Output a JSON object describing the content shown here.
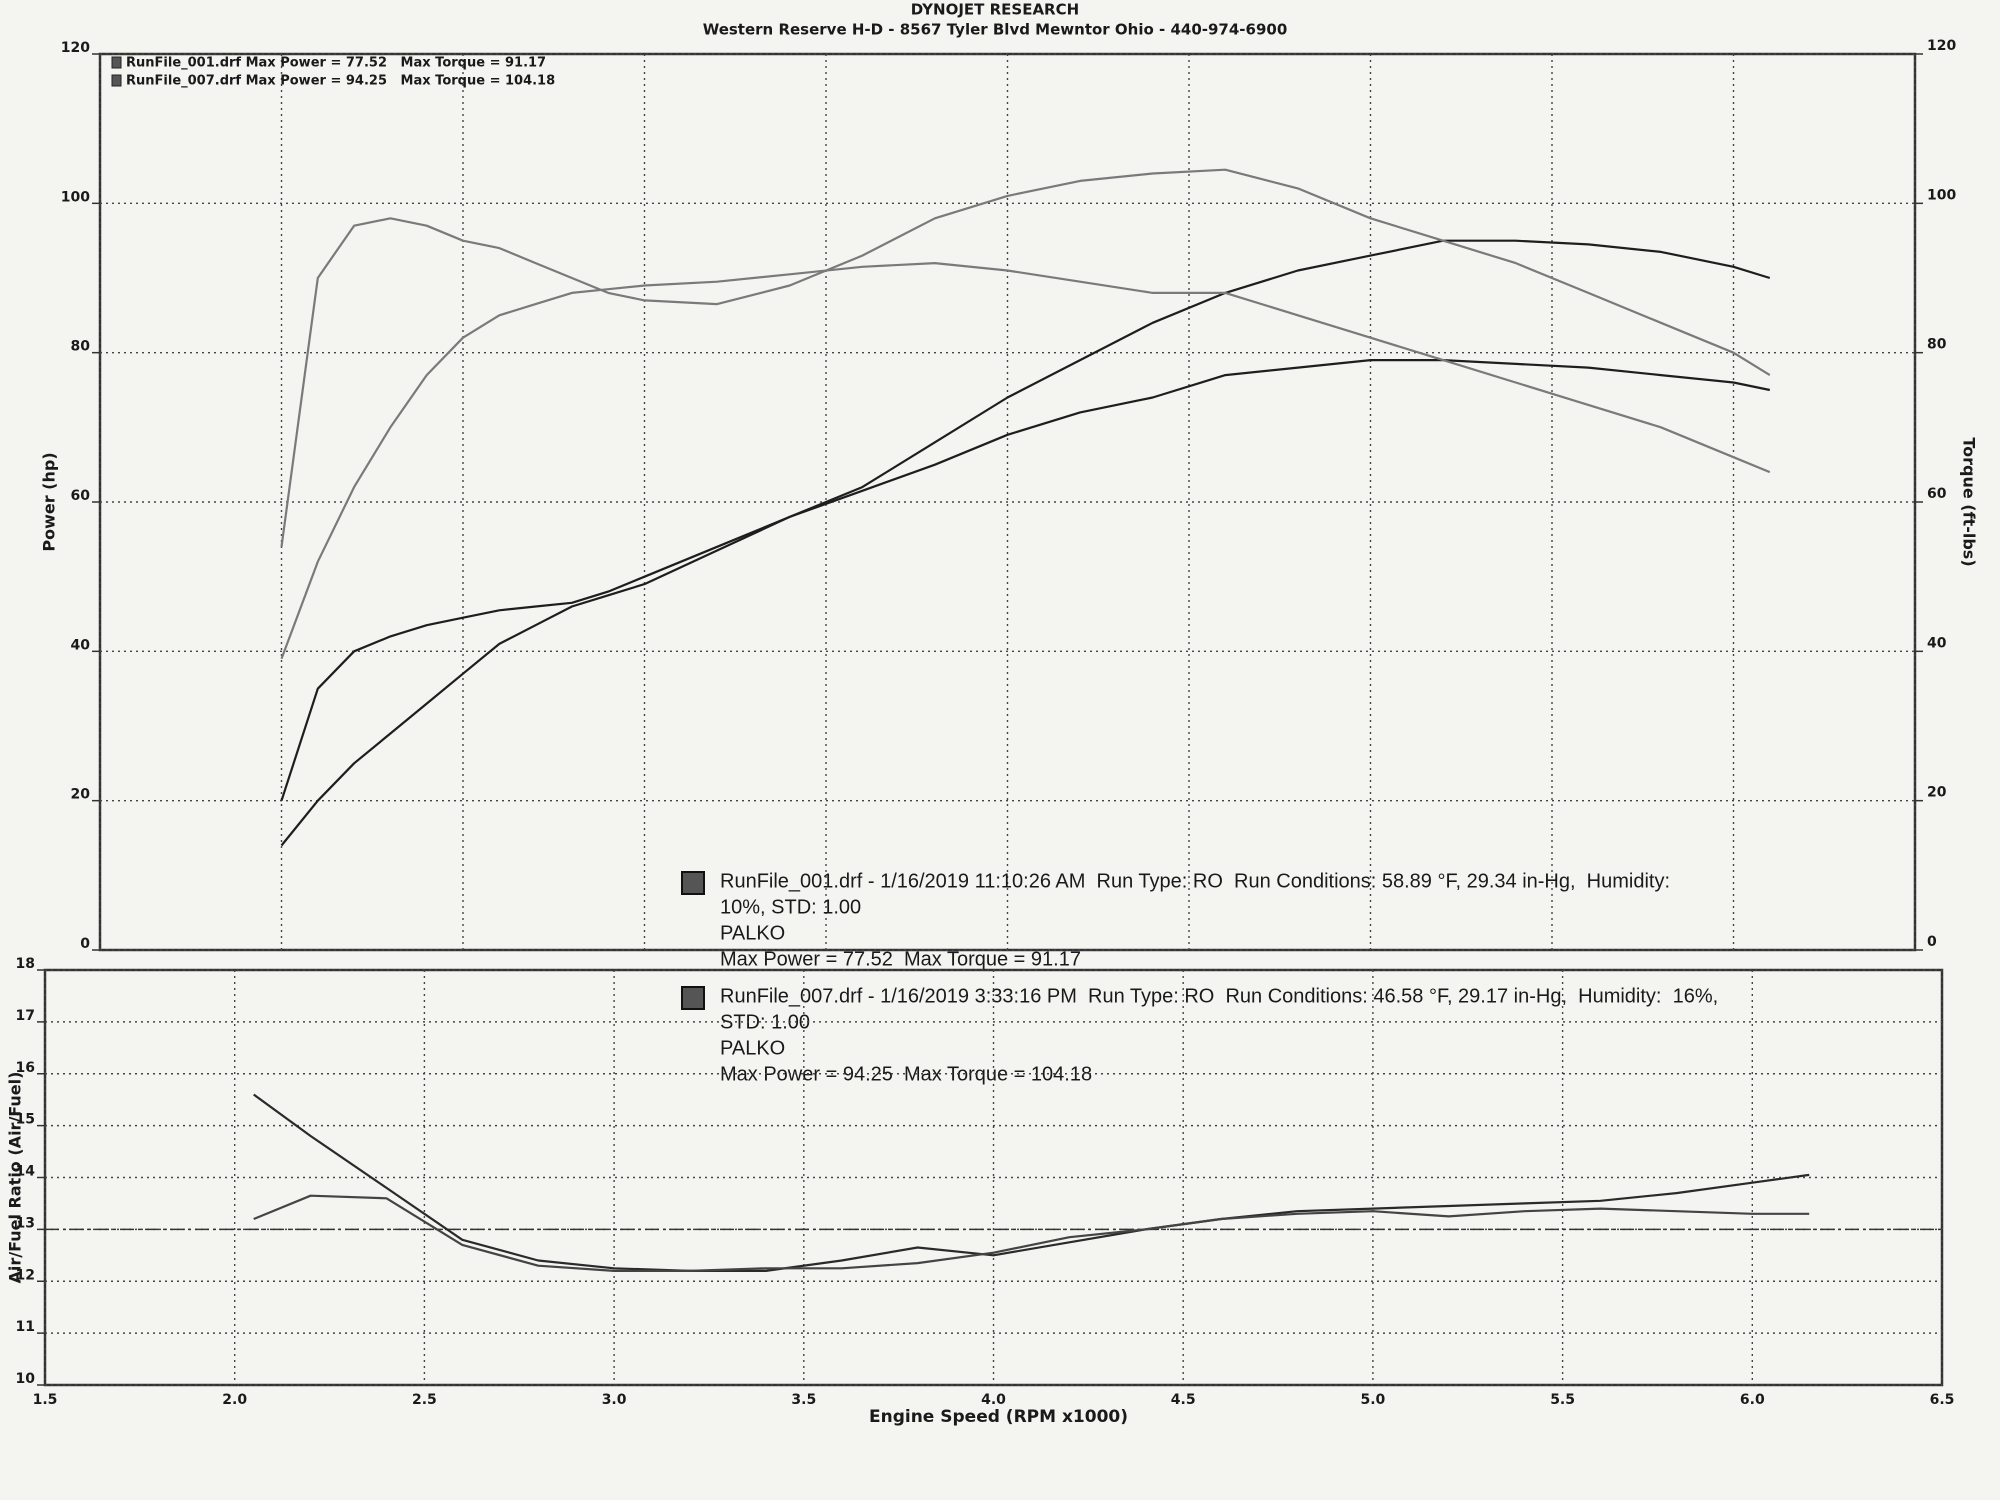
{
  "chart_data": [
    {
      "type": "line",
      "title": "DYNOJET RESEARCH",
      "subtitle": "Western Reserve H-D - 8567 Tyler Blvd Mewntor Ohio - 440-974-6900",
      "ylabel": "Power (hp)",
      "y2label": "Torque (ft-lbs)",
      "legend": [
        "RunFile_001.drf Max Power = 77.52   Max Torque = 91.17",
        "RunFile_007.drf Max Power = 94.25   Max Torque = 104.18"
      ],
      "annotations": [
        [
          "RunFile_001.drf - 1/16/2019 11:10:26 AM  Run Type: RO  Run Conditions: 58.89 °F, 29.34 in-Hg,  Humidity:",
          "10%, STD: 1.00",
          "PALKO",
          "Max Power = 77.52  Max Torque = 91.17"
        ],
        [
          "RunFile_007.drf - 1/16/2019 3:33:16 PM  Run Type: RO  Run Conditions: 46.58 °F, 29.17 in-Hg,  Humidity:  16%,",
          "STD: 1.00",
          "PALKO",
          "Max Power = 94.25  Max Torque = 104.18"
        ]
      ],
      "xlim": [
        1.5,
        6.5
      ],
      "x": [
        2.0,
        2.1,
        2.2,
        2.3,
        2.4,
        2.5,
        2.6,
        2.7,
        2.8,
        2.9,
        3.0,
        3.2,
        3.4,
        3.6,
        3.8,
        4.0,
        4.2,
        4.4,
        4.6,
        4.8,
        5.0,
        5.2,
        5.4,
        5.6,
        5.8,
        6.0,
        6.1
      ],
      "ylim": [
        0,
        120
      ],
      "yticks": [
        0,
        20,
        40,
        60,
        80,
        100,
        120
      ],
      "y2lim": [
        0,
        120
      ],
      "y2ticks": [
        0,
        20,
        40,
        60,
        80,
        100,
        120
      ],
      "grid": true,
      "series": [
        {
          "color": "#1e1e1e",
          "values": [
            20,
            35,
            40,
            42,
            43.5,
            44.5,
            45.5,
            46,
            46.5,
            48,
            50,
            54,
            58,
            61.5,
            65,
            69,
            72,
            74,
            77,
            78,
            79,
            79,
            78.5,
            78,
            77,
            76,
            75
          ]
        },
        {
          "color": "#1e1e1e",
          "values": [
            14,
            20,
            25,
            29,
            33,
            37,
            41,
            43.5,
            46,
            47.5,
            49,
            53.5,
            58,
            62,
            68,
            74,
            79,
            84,
            88,
            91,
            93,
            95,
            95,
            94.5,
            93.5,
            91.5,
            90
          ]
        },
        {
          "color": "#7a7a7a",
          "axis": "y2",
          "values": [
            39,
            52,
            62,
            70,
            77,
            82,
            85,
            86.5,
            88,
            88.5,
            89,
            89.5,
            90.5,
            91.5,
            92,
            91,
            89.5,
            88,
            88,
            85,
            82,
            79,
            76,
            73,
            70,
            66,
            64
          ]
        },
        {
          "color": "#7a7a7a",
          "axis": "y2",
          "values": [
            54,
            90,
            97,
            98,
            97,
            95,
            94,
            92,
            90,
            88,
            87,
            86.5,
            89,
            93,
            98,
            101,
            103,
            104,
            104.5,
            102,
            98,
            95,
            92,
            88,
            84,
            80,
            77
          ]
        }
      ]
    },
    {
      "type": "line",
      "ylabel": "Air/Fuel Ratio (Air/Fuel)",
      "xlabel": "Engine Speed (RPM x1000)",
      "xlim": [
        1.5,
        6.5
      ],
      "xticks": [
        1.5,
        {
          "value": 2,
          "label": "2.0"
        },
        2.5,
        {
          "value": 3,
          "label": "3.0"
        },
        3.5,
        {
          "value": 4,
          "label": "4.0"
        },
        4.5,
        {
          "value": 5,
          "label": "5.0"
        },
        5.5,
        {
          "value": 6,
          "label": "6.0"
        },
        6.5
      ],
      "ylim": [
        10,
        18
      ],
      "yticks": [
        10,
        11,
        12,
        13,
        14,
        15,
        16,
        17,
        18
      ],
      "grid": true,
      "reference_line": 13,
      "x": [
        2.05,
        2.2,
        2.4,
        2.6,
        2.8,
        3.0,
        3.2,
        3.4,
        3.6,
        3.8,
        4.0,
        4.2,
        4.4,
        4.6,
        4.8,
        5.0,
        5.2,
        5.4,
        5.6,
        5.8,
        6.0,
        6.15
      ],
      "series": [
        {
          "color": "#2a2a2a",
          "values": [
            15.6,
            14.8,
            13.8,
            12.8,
            12.4,
            12.25,
            12.2,
            12.2,
            12.4,
            12.65,
            12.5,
            12.75,
            13.0,
            13.2,
            13.35,
            13.4,
            13.45,
            13.5,
            13.55,
            13.7,
            13.9,
            14.05
          ]
        },
        {
          "color": "#444444",
          "values": [
            13.2,
            13.65,
            13.6,
            12.7,
            12.3,
            12.2,
            12.2,
            12.25,
            12.25,
            12.35,
            12.55,
            12.85,
            13.0,
            13.2,
            13.3,
            13.35,
            13.25,
            13.35,
            13.4,
            13.35,
            13.3,
            13.3
          ]
        }
      ]
    }
  ]
}
